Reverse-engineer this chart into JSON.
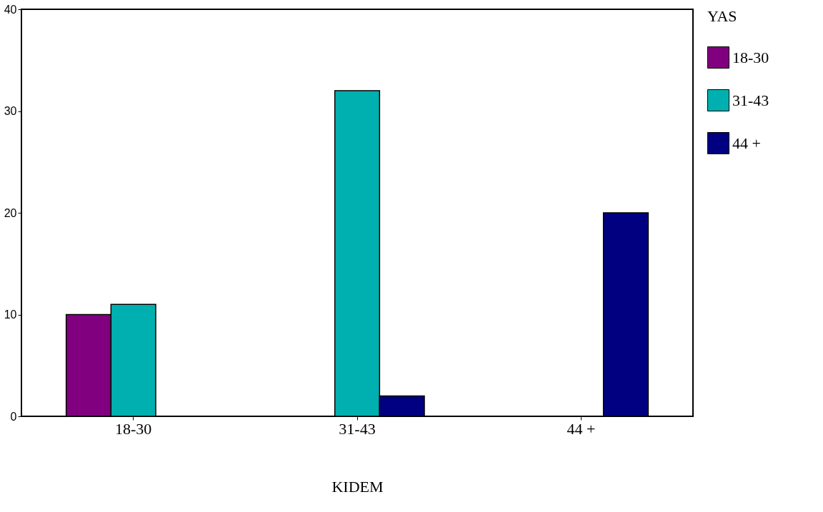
{
  "chart_data": {
    "type": "bar",
    "xlabel": "KIDEM",
    "legend_title": "YAS",
    "categories": [
      "18-30",
      "31-43",
      "44 +"
    ],
    "series": [
      {
        "name": "18-30",
        "color": "#800080",
        "values": [
          10,
          null,
          null
        ]
      },
      {
        "name": "31-43",
        "color": "#00b0b0",
        "values": [
          11,
          32,
          null
        ]
      },
      {
        "name": "44 +",
        "color": "#000080",
        "values": [
          null,
          2,
          20
        ]
      }
    ],
    "ylim": [
      0,
      40
    ],
    "yticks": [
      0,
      10,
      20,
      30,
      40
    ],
    "grid": false,
    "legend": "right"
  }
}
